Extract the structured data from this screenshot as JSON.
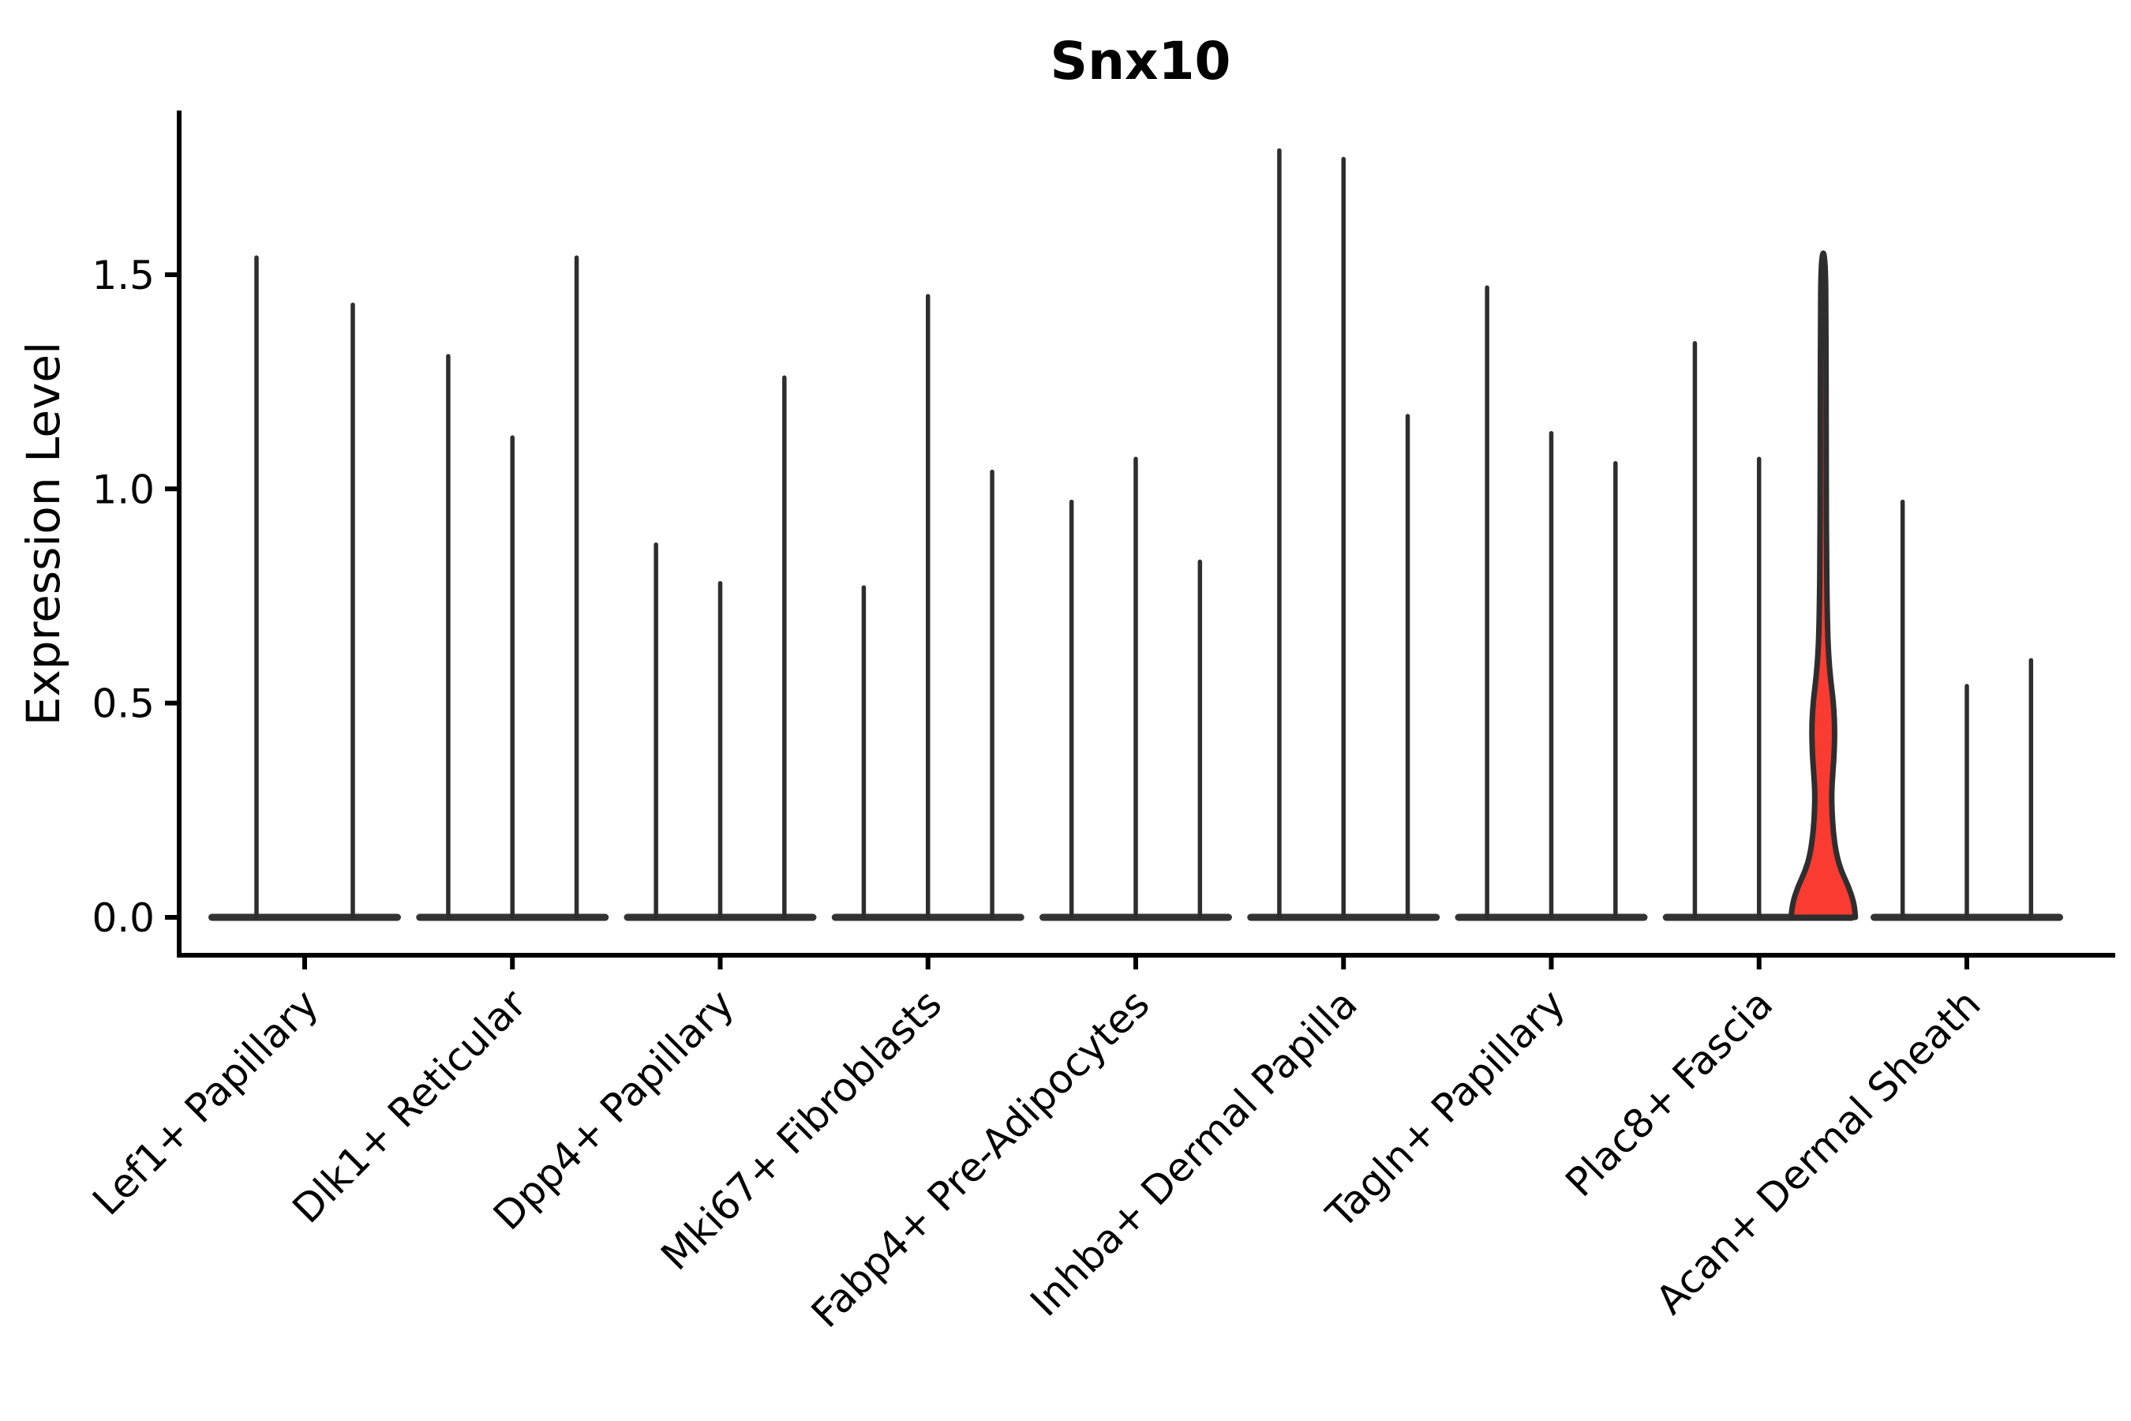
{
  "chart_data": {
    "type": "violin",
    "title": "Snx10",
    "ylabel": "Expression Level",
    "xlabel": "",
    "yticks": [
      0.0,
      0.5,
      1.0,
      1.5
    ],
    "ylim": [
      -0.09,
      1.88
    ],
    "grid": false,
    "legend": "none",
    "colors": {
      "spike": "#2e2e2e",
      "base_bar": "#333333",
      "highlight_fill": "#f93b31",
      "outline": "#2e2e2e",
      "axis": "#000000",
      "text": "#000000",
      "background": "#ffffff"
    },
    "groups": [
      {
        "label": "Lef1+ Papillary",
        "violins": [
          {
            "max": 1.54
          },
          {
            "max": 1.43
          }
        ]
      },
      {
        "label": "Dlk1+ Reticular",
        "violins": [
          {
            "max": 1.31
          },
          {
            "max": 1.12
          },
          {
            "max": 1.54
          }
        ]
      },
      {
        "label": "Dpp4+ Papillary",
        "violins": [
          {
            "max": 0.87
          },
          {
            "max": 0.78
          },
          {
            "max": 1.26
          }
        ]
      },
      {
        "label": "Mki67+ Fibroblasts",
        "violins": [
          {
            "max": 0.77
          },
          {
            "max": 1.45
          },
          {
            "max": 1.04
          }
        ]
      },
      {
        "label": "Fabp4+ Pre-Adipocytes",
        "violins": [
          {
            "max": 0.97
          },
          {
            "max": 1.07
          },
          {
            "max": 0.83
          }
        ]
      },
      {
        "label": "Inhba+ Dermal Papilla",
        "violins": [
          {
            "max": 1.79
          },
          {
            "max": 1.77
          },
          {
            "max": 1.17
          }
        ]
      },
      {
        "label": "Tagln+ Papillary",
        "violins": [
          {
            "max": 1.47
          },
          {
            "max": 1.13
          },
          {
            "max": 1.06
          }
        ]
      },
      {
        "label": "Plac8+ Fascia",
        "violins": [
          {
            "max": 1.34
          },
          {
            "max": 1.07
          },
          {
            "max": 1.56,
            "highlighted": true,
            "profile": [
              [
                0.0,
                1.0
              ],
              [
                0.03,
                0.97
              ],
              [
                0.07,
                0.8
              ],
              [
                0.11,
                0.55
              ],
              [
                0.15,
                0.4
              ],
              [
                0.2,
                0.31
              ],
              [
                0.25,
                0.27
              ],
              [
                0.29,
                0.26
              ],
              [
                0.33,
                0.29
              ],
              [
                0.38,
                0.34
              ],
              [
                0.44,
                0.36
              ],
              [
                0.5,
                0.32
              ],
              [
                0.56,
                0.22
              ],
              [
                0.63,
                0.15
              ],
              [
                0.72,
                0.12
              ],
              [
                0.85,
                0.1
              ],
              [
                1.0,
                0.095
              ],
              [
                1.2,
                0.09
              ],
              [
                1.4,
                0.085
              ],
              [
                1.52,
                0.07
              ],
              [
                1.56,
                0.0
              ]
            ]
          }
        ]
      },
      {
        "label": "Acan+ Dermal Sheath",
        "violins": [
          {
            "max": 0.97
          },
          {
            "max": 0.54
          },
          {
            "max": 0.6
          }
        ]
      }
    ]
  }
}
